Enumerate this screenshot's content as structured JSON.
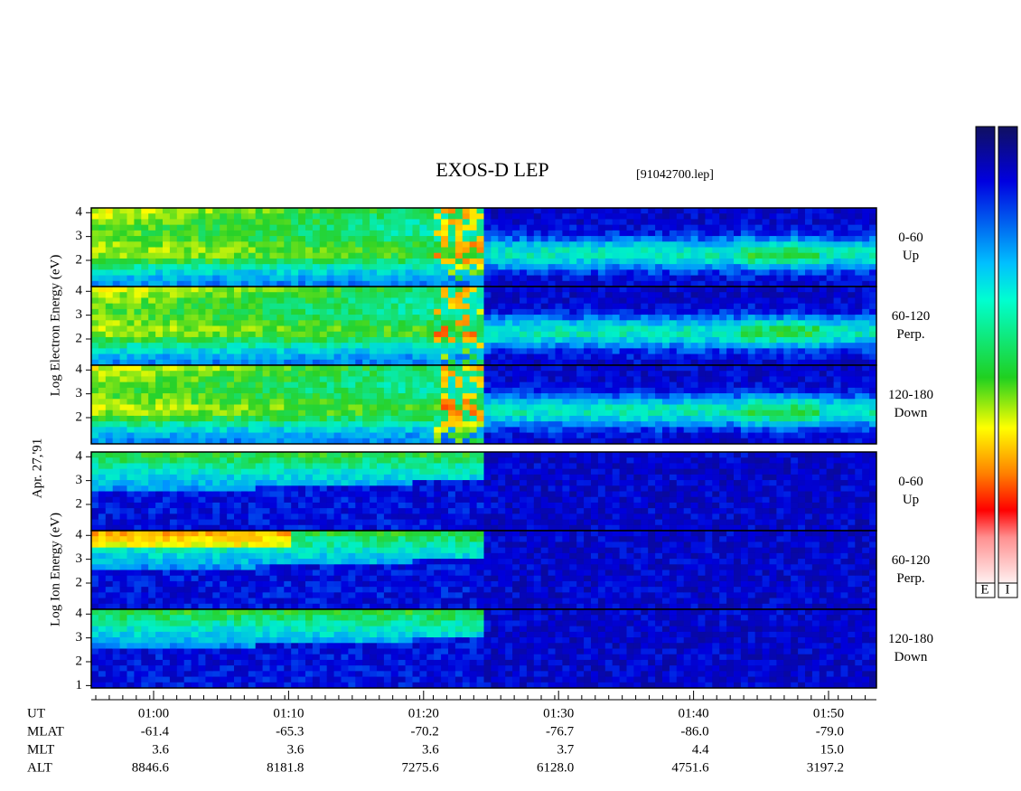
{
  "header": {
    "title": "EXOS-D LEP",
    "file": "[91042700.lep]"
  },
  "date": "Apr. 27,'91",
  "groups": [
    {
      "axis_label": "Log  Electron  Energy (eV)",
      "kind": "electron",
      "panels": [
        {
          "pitch": "0-60",
          "direction": "Up",
          "ylim": [
            0.9,
            4.2
          ],
          "yticks": [
            2,
            3,
            4
          ]
        },
        {
          "pitch": "60-120",
          "direction": "Perp.",
          "ylim": [
            0.9,
            4.2
          ],
          "yticks": [
            2,
            3,
            4
          ]
        },
        {
          "pitch": "120-180",
          "direction": "Down",
          "ylim": [
            0.9,
            4.2
          ],
          "yticks": [
            2,
            3,
            4
          ]
        }
      ]
    },
    {
      "axis_label": "Log  Ion  Energy (eV)",
      "kind": "ion",
      "panels": [
        {
          "pitch": "0-60",
          "direction": "Up",
          "ylim": [
            0.9,
            4.2
          ],
          "yticks": [
            2,
            3,
            4
          ]
        },
        {
          "pitch": "60-120",
          "direction": "Perp.",
          "ylim": [
            0.9,
            4.2
          ],
          "yticks": [
            2,
            3,
            4
          ]
        },
        {
          "pitch": "120-180",
          "direction": "Down",
          "ylim": [
            0.9,
            4.2
          ],
          "yticks": [
            1,
            2,
            3,
            4
          ]
        }
      ]
    }
  ],
  "orbit": {
    "labels": [
      "UT",
      "MLAT",
      "MLT",
      "ALT"
    ],
    "rows": [
      [
        "01:00",
        "01:10",
        "01:20",
        "01:30",
        "01:40",
        "01:50"
      ],
      [
        "-61.4",
        "-65.3",
        "-70.2",
        "-76.7",
        "-86.0",
        "-79.0"
      ],
      [
        "3.6",
        "3.6",
        "3.6",
        "3.7",
        "4.4",
        "15.0"
      ],
      [
        "8846.6",
        "8181.8",
        "7275.6",
        "6128.0",
        "4751.6",
        "3197.2"
      ]
    ]
  },
  "colorbar": [
    "E",
    "I"
  ]
}
